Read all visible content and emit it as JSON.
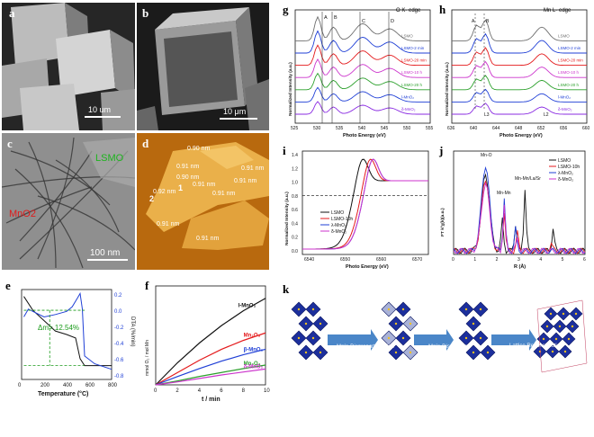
{
  "panels": {
    "a": {
      "letter": "a",
      "scale": "10 um"
    },
    "b": {
      "letter": "b",
      "scale": "10 μm"
    },
    "c": {
      "letter": "c",
      "scale": "100 nm",
      "label_lsmo": "LSMO",
      "label_mno2": "MnO2"
    },
    "d": {
      "letter": "d",
      "labels": [
        "0.90 nm",
        "0.91 nm",
        "0.90 nm",
        "0.92 nm",
        "0.91 nm",
        "0.91 nm",
        "0.91 nm",
        "0.91 nm",
        "0.91 nm",
        "0.91 nm"
      ],
      "points": [
        "1",
        "2"
      ]
    },
    "e": {
      "letter": "e",
      "annotation": "Δm= 12.54%",
      "xlabel": "Temperature (°C)",
      "ylabel": "DTA (%/min)",
      "xticks": [
        "0",
        "200",
        "400",
        "600",
        "800"
      ],
      "yticks": [
        "0.2",
        "0.0",
        "-0.2",
        "-0.4",
        "-0.6",
        "-0.8"
      ]
    },
    "f": {
      "letter": "f",
      "xlabel": "t / min",
      "ylabel": "mmol O₂ / mol Mn",
      "xticks": [
        "0",
        "2",
        "4",
        "6",
        "8",
        "10"
      ],
      "series_labels": [
        "l-MnO₂",
        "Mn₂O₃",
        "β-MnO₂",
        "Mn₃O₄",
        "δ-MnO₂"
      ]
    },
    "g": {
      "letter": "g",
      "edge": "O K- edge",
      "xlabel": "Photo Energy (eV)",
      "ylabel": "Normalized Intensity (a.u.)",
      "xticks": [
        "525",
        "530",
        "535",
        "540",
        "545",
        "550",
        "555"
      ],
      "peaks": [
        "A",
        "B",
        "C",
        "D"
      ],
      "legend": [
        "δ-MnO₂",
        "l-MnO₂",
        "LSMO-20 h",
        "LSMO-10 h",
        "LSMO-20 min",
        "LSMO-2 min",
        "LSMO"
      ]
    },
    "h": {
      "letter": "h",
      "edge": "Mn L- edge",
      "xlabel": "Photo Energy (eV)",
      "ylabel": "Normalized Intensity (a.u.)",
      "xticks": [
        "636",
        "640",
        "644",
        "648",
        "652",
        "656",
        "660"
      ],
      "peaks": [
        "A",
        "B"
      ],
      "edges": [
        "L3",
        "L2"
      ],
      "legend": [
        "δ-MnO₂",
        "l-MnO₂",
        "LSMO-20 h",
        "LSMO-10 h",
        "LSMO-20 min",
        "LSMO-2 min",
        "LSMO"
      ]
    },
    "i": {
      "letter": "i",
      "xlabel": "Photo Energy (eV)",
      "ylabel": "Normalized Intensity (a.u.)",
      "xticks": [
        "6540",
        "6550",
        "6560",
        "6570"
      ],
      "yticks": [
        "0.0",
        "0.2",
        "0.4",
        "0.6",
        "0.8",
        "1.0",
        "1.2",
        "1.4"
      ],
      "legend": [
        "LSMO",
        "LSMO-10h",
        "λ-MnO₂",
        "δ-MnO₂"
      ]
    },
    "j": {
      "letter": "j",
      "xlabel": "R (Å)",
      "ylabel": "FT k³χ(k)(a.u.)",
      "xticks": [
        "0",
        "1",
        "2",
        "3",
        "4",
        "5",
        "6"
      ],
      "annotations": [
        "Mn-O",
        "Mn-Mn",
        "Mn-Mn/La/Sr"
      ],
      "legend": [
        "LSMO",
        "LSMO-10h",
        "λ-MnO₂",
        "δ-MnO₂"
      ]
    },
    "k": {
      "letter": "k",
      "steps": [
        "Mn³⁺ Disproportionation",
        "Mn²⁺ Dissolution",
        "Lattice Reconstruction"
      ]
    }
  },
  "colors": {
    "black": "#111111",
    "red": "#e41a1c",
    "blue": "#1f3fd6",
    "green": "#2ca02c",
    "magenta": "#cc33cc",
    "purple": "#8a2be2",
    "gray": "#6e6e6e",
    "arrow": "#4a86c8",
    "octa": "#1c2f9c"
  },
  "chart_data": [
    {
      "panel": "e",
      "type": "line",
      "xlabel": "Temperature (°C)",
      "ylabel": "DTA (%/min)",
      "xlim": [
        0,
        800
      ],
      "series": [
        {
          "color": "#111111",
          "x": [
            20,
            100,
            200,
            300,
            400,
            480,
            520,
            560,
            800
          ],
          "y": [
            100,
            96,
            93,
            90,
            89,
            88,
            82,
            80,
            80
          ]
        },
        {
          "color": "#1f3fd6",
          "x": [
            20,
            60,
            100,
            200,
            300,
            400,
            450,
            500,
            520,
            540,
            560,
            650,
            800
          ],
          "y": [
            -0.05,
            0.05,
            0.02,
            -0.05,
            -0.02,
            0.02,
            0.08,
            0.2,
            0.25,
            0.05,
            -0.55,
            -0.65,
            -0.72
          ]
        }
      ]
    },
    {
      "panel": "f",
      "type": "line",
      "xlabel": "t / min",
      "ylabel": "mmol O₂ / mol Mn",
      "xlim": [
        0,
        10
      ],
      "ylim": [
        0,
        200
      ],
      "series": [
        {
          "name": "l-MnO₂",
          "color": "#111111",
          "x": [
            0,
            2,
            4,
            6,
            8,
            10
          ],
          "y": [
            0,
            45,
            85,
            120,
            150,
            175
          ]
        },
        {
          "name": "Mn₂O₃",
          "color": "#e41a1c",
          "x": [
            0,
            2,
            4,
            6,
            8,
            10
          ],
          "y": [
            0,
            25,
            50,
            72,
            90,
            105
          ]
        },
        {
          "name": "β-MnO₂",
          "color": "#1f3fd6",
          "x": [
            0,
            2,
            4,
            6,
            8,
            10
          ],
          "y": [
            0,
            17,
            33,
            48,
            61,
            72
          ]
        },
        {
          "name": "Mn₃O₄",
          "color": "#2ca02c",
          "x": [
            0,
            2,
            4,
            6,
            8,
            10
          ],
          "y": [
            0,
            8,
            17,
            25,
            33,
            40
          ]
        },
        {
          "name": "δ-MnO₂",
          "color": "#cc33cc",
          "x": [
            0,
            2,
            4,
            6,
            8,
            10
          ],
          "y": [
            0,
            6,
            13,
            20,
            26,
            32
          ]
        }
      ]
    }
  ]
}
